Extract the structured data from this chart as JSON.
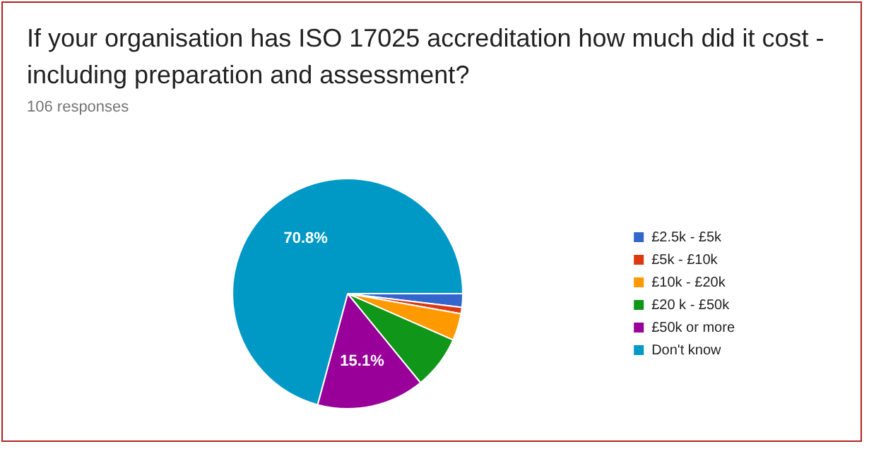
{
  "chart_data": {
    "type": "pie",
    "title": "If your organisation has ISO 17025 accreditation how much did it cost - including preparation and assessment?",
    "subtitle": "106 responses",
    "categories": [
      "£2.5k - £5k",
      "£5k - £10k",
      "£10k - £20k",
      "£20 k - £50k",
      "£50k or more",
      "Don't know"
    ],
    "values": [
      1.9,
      0.9,
      3.8,
      7.5,
      15.1,
      70.8
    ],
    "colors": [
      "#3366cc",
      "#dc3912",
      "#ff9900",
      "#109618",
      "#990099",
      "#0099c6"
    ],
    "value_labels": [
      null,
      null,
      null,
      null,
      "15.1%",
      "70.8%"
    ],
    "legend": "right"
  }
}
